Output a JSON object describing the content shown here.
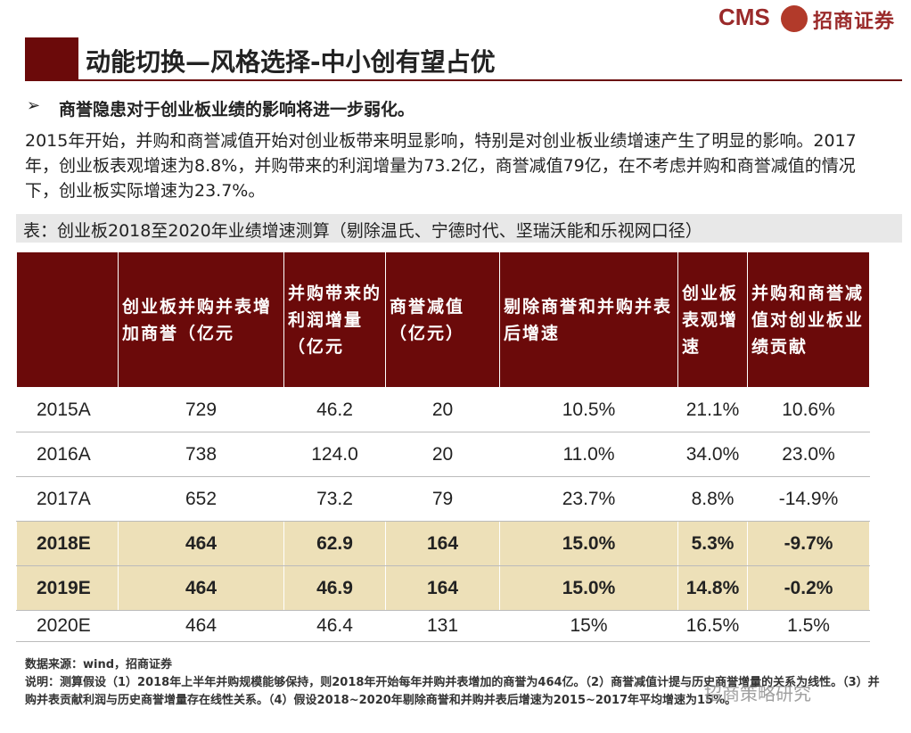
{
  "header": {
    "logo_text": "CMS",
    "brand": "招商证券"
  },
  "title": "动能切换—风格选择-中小创有望占优",
  "bullet": "商誉隐患对于创业板业绩的影响将进一步弱化。",
  "paragraph": "2015年开始，并购和商誉减值开始对创业板带来明显影响，特别是对创业板业绩增速产生了明显的影响。2017年，创业板表观增速为8.8%，并购带来的利润增量为73.2亿，商誉减值79亿，在不考虑并购和商誉减值的情况下，创业板实际增速为23.7%。",
  "table": {
    "caption": "表：创业板2018至2020年业绩增速测算（剔除温氏、宁德时代、坚瑞沃能和乐视网口径）",
    "columns": [
      "创业板并购并表增加商誉（亿元",
      "并购带来的利润增量（亿元",
      "商誉减值（亿元）",
      "剔除商誉和并购并表后增速",
      "创业板表观增速",
      "并购和商誉减值对创业板业绩贡献"
    ],
    "rows": [
      [
        "2015A",
        "729",
        "46.2",
        "20",
        "10.5%",
        "21.1%",
        "10.6%"
      ],
      [
        "2016A",
        "738",
        "124.0",
        "20",
        "11.0%",
        "34.0%",
        "23.0%"
      ],
      [
        "2017A",
        "652",
        "73.2",
        "79",
        "23.7%",
        "8.8%",
        "-14.9%"
      ],
      [
        "2018E",
        "464",
        "62.9",
        "164",
        "15.0%",
        "5.3%",
        "-9.7%"
      ],
      [
        "2019E",
        "464",
        "46.9",
        "164",
        "15.0%",
        "14.8%",
        "-0.2%"
      ],
      [
        "2020E",
        "464",
        "46.4",
        "131",
        "15%",
        "16.5%",
        "1.5%"
      ]
    ]
  },
  "notes": {
    "source": "数据来源：wind，招商证券",
    "explanation": "说明：测算假设（1）2018年上半年并购规模能够保持，则2018年开始每年并购并表增加的商誉为464亿。（2）商誉减值计提与历史商誉增量的关系为线性。（3）并购并表贡献利润与历史商誉增量存在线性关系。（4）假设2018~2020年剔除商誉和并购并表后增速为2015~2017年平均增速为15%。"
  },
  "watermark": "招商策略研究"
}
